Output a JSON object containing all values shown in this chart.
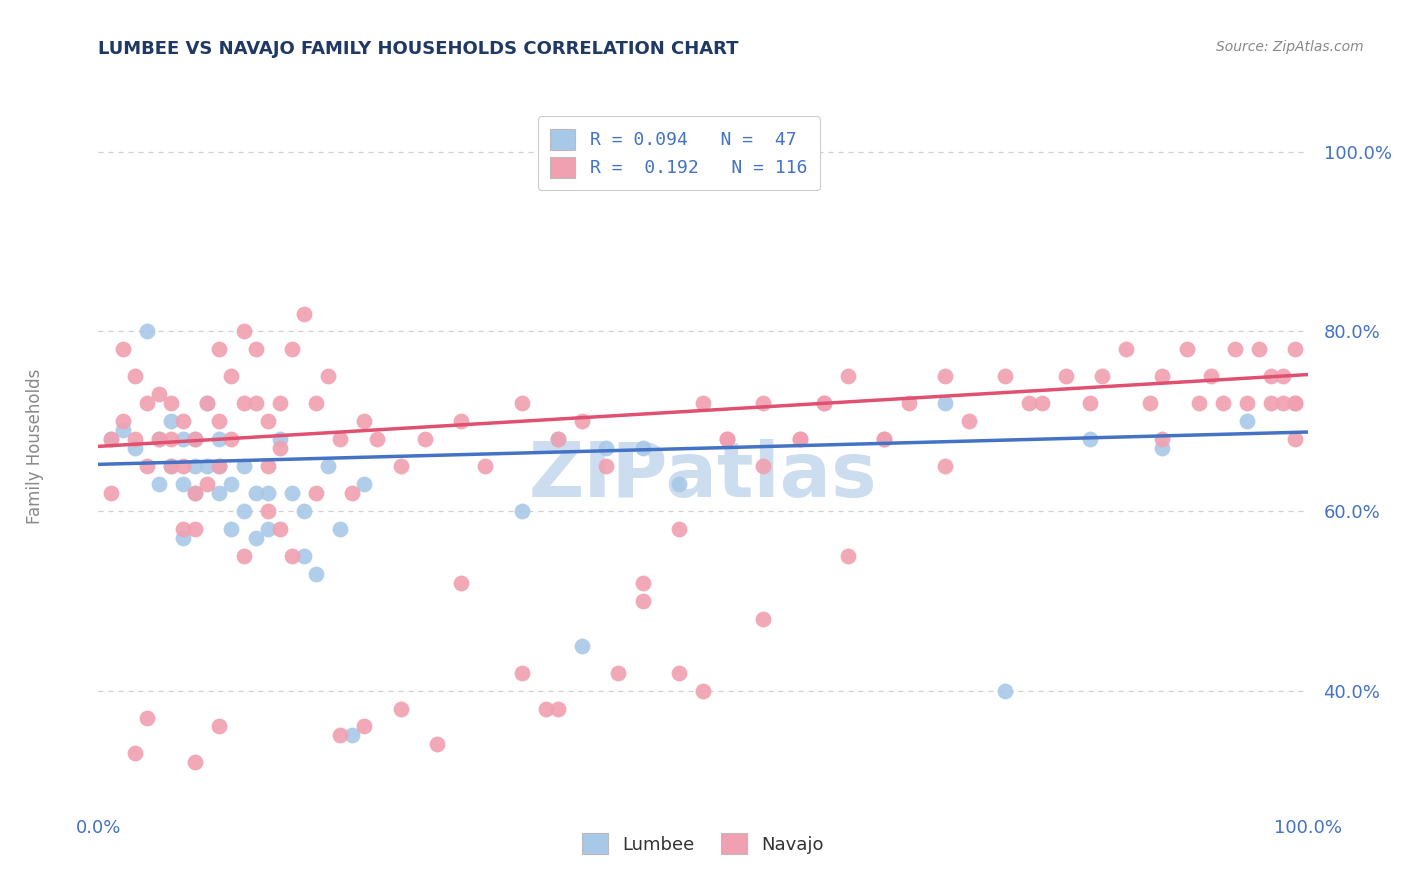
{
  "title": "LUMBEE VS NAVAJO FAMILY HOUSEHOLDS CORRELATION CHART",
  "source": "Source: ZipAtlas.com",
  "ylabel": "Family Households",
  "ytick_values": [
    0.4,
    0.6,
    0.8,
    1.0
  ],
  "ytick_labels": [
    "40.0%",
    "60.0%",
    "80.0%",
    "100.0%"
  ],
  "xlim": [
    0.0,
    1.0
  ],
  "ylim": [
    0.275,
    1.05
  ],
  "legend_lumbee": "R = 0.094   N =  47",
  "legend_navajo": "R =  0.192   N = 116",
  "lumbee_color": "#a8c8e8",
  "navajo_color": "#f0a0b0",
  "lumbee_line_color": "#4472c4",
  "navajo_line_color": "#e05070",
  "title_color": "#1f3864",
  "axis_label_color": "#4472c4",
  "ylabel_color": "#888888",
  "background_color": "#ffffff",
  "grid_color": "#d0d0d0",
  "watermark_color": "#ccddf0",
  "lumbee_R": 0.094,
  "lumbee_N": 47,
  "navajo_R": 0.192,
  "navajo_N": 116,
  "navajo_line_start_y": 0.672,
  "navajo_line_end_y": 0.752,
  "lumbee_line_start_y": 0.652,
  "lumbee_line_end_y": 0.688,
  "lumbee_x": [
    0.01,
    0.02,
    0.03,
    0.04,
    0.05,
    0.05,
    0.06,
    0.06,
    0.07,
    0.07,
    0.07,
    0.08,
    0.08,
    0.08,
    0.09,
    0.09,
    0.1,
    0.1,
    0.1,
    0.11,
    0.11,
    0.12,
    0.12,
    0.13,
    0.13,
    0.14,
    0.14,
    0.15,
    0.16,
    0.17,
    0.17,
    0.18,
    0.19,
    0.2,
    0.21,
    0.22,
    0.35,
    0.38,
    0.4,
    0.42,
    0.45,
    0.48,
    0.7,
    0.75,
    0.82,
    0.88,
    0.95
  ],
  "lumbee_y": [
    0.68,
    0.69,
    0.67,
    0.8,
    0.63,
    0.68,
    0.65,
    0.7,
    0.68,
    0.63,
    0.57,
    0.65,
    0.62,
    0.68,
    0.72,
    0.65,
    0.65,
    0.62,
    0.68,
    0.63,
    0.58,
    0.65,
    0.6,
    0.62,
    0.57,
    0.62,
    0.58,
    0.68,
    0.62,
    0.6,
    0.55,
    0.53,
    0.65,
    0.58,
    0.35,
    0.63,
    0.6,
    0.68,
    0.45,
    0.67,
    0.67,
    0.63,
    0.72,
    0.4,
    0.68,
    0.67,
    0.7
  ],
  "navajo_x": [
    0.01,
    0.01,
    0.02,
    0.02,
    0.03,
    0.03,
    0.04,
    0.04,
    0.05,
    0.05,
    0.06,
    0.06,
    0.07,
    0.07,
    0.07,
    0.08,
    0.08,
    0.08,
    0.09,
    0.09,
    0.1,
    0.1,
    0.1,
    0.11,
    0.11,
    0.12,
    0.12,
    0.13,
    0.13,
    0.14,
    0.14,
    0.15,
    0.15,
    0.16,
    0.17,
    0.18,
    0.19,
    0.2,
    0.21,
    0.22,
    0.23,
    0.25,
    0.27,
    0.3,
    0.32,
    0.35,
    0.38,
    0.4,
    0.42,
    0.45,
    0.48,
    0.5,
    0.52,
    0.55,
    0.58,
    0.6,
    0.62,
    0.65,
    0.67,
    0.7,
    0.72,
    0.75,
    0.77,
    0.8,
    0.82,
    0.83,
    0.85,
    0.87,
    0.88,
    0.9,
    0.91,
    0.92,
    0.93,
    0.94,
    0.95,
    0.96,
    0.97,
    0.97,
    0.98,
    0.98,
    0.99,
    0.99,
    0.99,
    0.99,
    0.58,
    0.62,
    0.55,
    0.48,
    0.52,
    0.45,
    0.38,
    0.35,
    0.3,
    0.25,
    0.2,
    0.18,
    0.15,
    0.12,
    0.1,
    0.08,
    0.06,
    0.04,
    0.03,
    0.5,
    0.43,
    0.37,
    0.28,
    0.22,
    0.16,
    0.14,
    0.88,
    0.78,
    0.7,
    0.65,
    0.6,
    0.55
  ],
  "navajo_y": [
    0.68,
    0.62,
    0.78,
    0.7,
    0.75,
    0.68,
    0.72,
    0.65,
    0.73,
    0.68,
    0.72,
    0.65,
    0.7,
    0.65,
    0.58,
    0.68,
    0.62,
    0.58,
    0.63,
    0.72,
    0.78,
    0.7,
    0.65,
    0.75,
    0.68,
    0.8,
    0.72,
    0.78,
    0.72,
    0.7,
    0.65,
    0.72,
    0.67,
    0.78,
    0.82,
    0.72,
    0.75,
    0.68,
    0.62,
    0.7,
    0.68,
    0.65,
    0.68,
    0.7,
    0.65,
    0.72,
    0.68,
    0.7,
    0.65,
    0.5,
    0.42,
    0.72,
    0.68,
    0.72,
    0.68,
    0.72,
    0.75,
    0.68,
    0.72,
    0.75,
    0.7,
    0.75,
    0.72,
    0.75,
    0.72,
    0.75,
    0.78,
    0.72,
    0.75,
    0.78,
    0.72,
    0.75,
    0.72,
    0.78,
    0.72,
    0.78,
    0.72,
    0.75,
    0.72,
    0.75,
    0.72,
    0.78,
    0.72,
    0.68,
    0.68,
    0.55,
    0.48,
    0.58,
    0.68,
    0.52,
    0.38,
    0.42,
    0.52,
    0.38,
    0.35,
    0.62,
    0.58,
    0.55,
    0.36,
    0.32,
    0.68,
    0.37,
    0.33,
    0.4,
    0.42,
    0.38,
    0.34,
    0.36,
    0.55,
    0.6,
    0.68,
    0.72,
    0.65,
    0.68,
    0.72,
    0.65
  ]
}
